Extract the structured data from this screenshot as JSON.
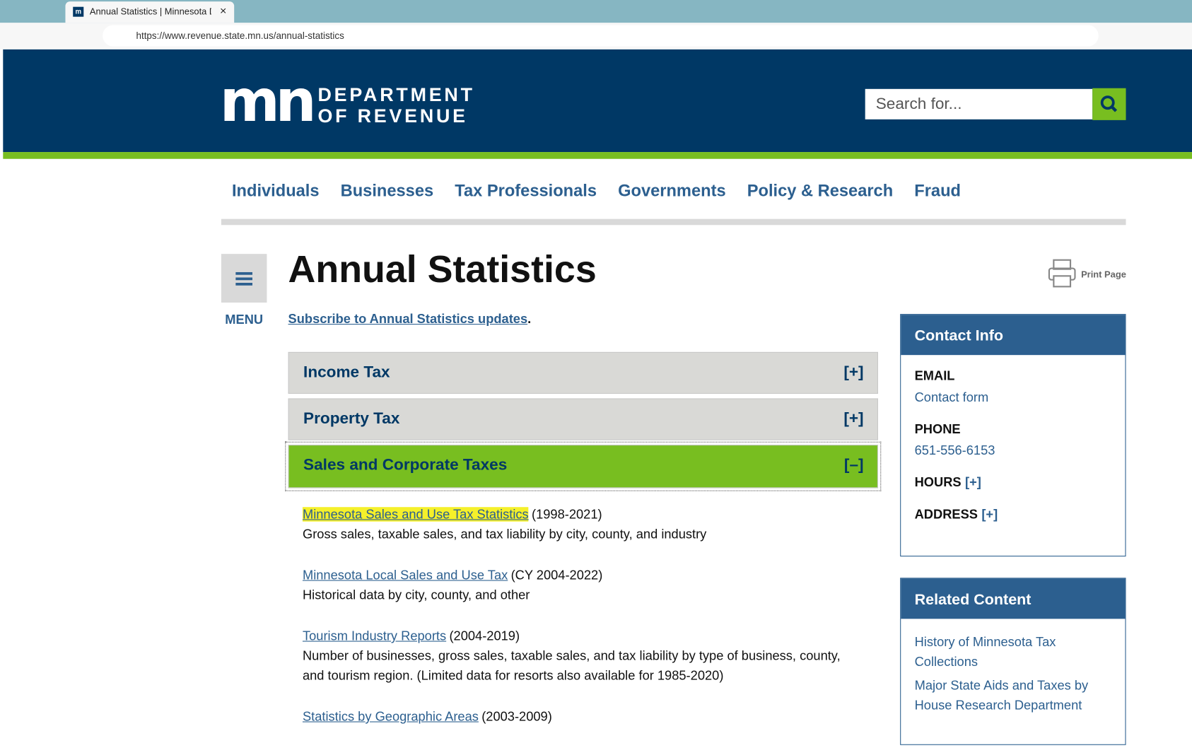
{
  "browser": {
    "tab_title": "Annual Statistics | Minnesota Dep",
    "url": "https://www.revenue.state.mn.us/annual-statistics"
  },
  "header": {
    "logo_mark": "mn",
    "logo_line1": "DEPARTMENT",
    "logo_line2": "OF REVENUE",
    "search_placeholder": "Search for..."
  },
  "nav": [
    "Individuals",
    "Businesses",
    "Tax Professionals",
    "Governments",
    "Policy & Research",
    "Fraud"
  ],
  "sidebar_menu": "MENU",
  "title": "Annual Statistics",
  "print": "Print Page",
  "subscribe": {
    "link": "Subscribe to Annual Statistics updates",
    "after": "."
  },
  "accordions": [
    {
      "label": "Income Tax",
      "toggle": "[+]"
    },
    {
      "label": "Property Tax",
      "toggle": "[+]"
    },
    {
      "label": "Sales and Corporate Taxes",
      "toggle": "[–]"
    }
  ],
  "items": [
    {
      "link": "Minnesota Sales and Use Tax Statistics",
      "range": "(1998-2021)",
      "description": "Gross sales, taxable sales, and tax liability by city, county, and industry"
    },
    {
      "link": "Minnesota Local Sales and Use Tax",
      "range": "(CY 2004-2022)",
      "description": "Historical data by city, county, and other"
    },
    {
      "link": "Tourism Industry Reports",
      "range": "(2004-2019)",
      "description": "Number of businesses, gross sales, taxable sales, and tax liability by type of business, county, and tourism region. (Limited data for resorts also available for 1985-2020)"
    },
    {
      "link": "Statistics by Geographic Areas",
      "range": "(2003-2009)"
    }
  ],
  "contact": {
    "heading": "Contact Info",
    "fields": [
      {
        "label": "EMAIL",
        "value": "Contact form"
      },
      {
        "label": "PHONE",
        "value": "651-556-6153"
      },
      {
        "label": "HOURS",
        "toggle": "[+]"
      },
      {
        "label": "ADDRESS",
        "toggle": "[+]"
      }
    ]
  },
  "related": {
    "heading": "Related Content",
    "links": [
      "History of Minnesota Tax Collections",
      "Major State Aids and Taxes by House Research Department"
    ]
  }
}
